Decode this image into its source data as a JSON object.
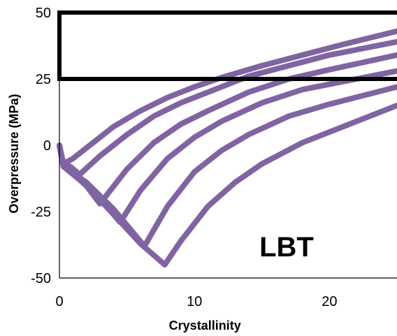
{
  "chart_data": {
    "type": "line",
    "title": "",
    "xlabel": "Crystallinity",
    "ylabel": "Overpressure (MPa)",
    "xlim": [
      0,
      25
    ],
    "ylim": [
      -50,
      50
    ],
    "x_ticks": [
      "0",
      "10",
      "20"
    ],
    "x_tick_values": [
      0,
      10,
      20
    ],
    "y_ticks": [
      "50",
      "25",
      "0",
      "-25",
      "-50"
    ],
    "y_tick_values": [
      50,
      25,
      0,
      -25,
      -50
    ],
    "grid": false,
    "line_color": "#8064A2",
    "annotation": "LBT",
    "box": {
      "x_range": [
        0,
        25
      ],
      "y_range": [
        25,
        50
      ]
    },
    "series": [
      {
        "points": [
          [
            0,
            0
          ],
          [
            0.3,
            -7
          ],
          [
            1.0,
            -5
          ],
          [
            2,
            -1
          ],
          [
            3,
            3
          ],
          [
            4,
            7
          ],
          [
            6,
            13
          ],
          [
            8,
            18
          ],
          [
            10,
            22
          ],
          [
            12,
            25.5
          ],
          [
            15,
            30
          ],
          [
            18,
            34
          ],
          [
            21,
            38
          ],
          [
            25,
            43
          ]
        ]
      },
      {
        "points": [
          [
            0,
            0
          ],
          [
            0.3,
            -8
          ],
          [
            0.8,
            -8
          ],
          [
            1.5,
            -11
          ],
          [
            3,
            -4
          ],
          [
            5,
            4
          ],
          [
            7,
            11
          ],
          [
            9,
            16
          ],
          [
            11,
            20
          ],
          [
            14,
            26
          ],
          [
            17,
            30
          ],
          [
            20,
            34
          ],
          [
            25,
            39
          ]
        ]
      },
      {
        "points": [
          [
            0,
            0
          ],
          [
            0.3,
            -8
          ],
          [
            1.5,
            -12
          ],
          [
            3,
            -22
          ],
          [
            5,
            -9
          ],
          [
            7,
            1
          ],
          [
            9,
            8
          ],
          [
            11,
            13
          ],
          [
            14,
            20
          ],
          [
            17,
            25
          ],
          [
            20,
            28.5
          ],
          [
            25,
            34
          ]
        ]
      },
      {
        "points": [
          [
            0,
            0
          ],
          [
            0.3,
            -8
          ],
          [
            1.5,
            -13
          ],
          [
            3,
            -20
          ],
          [
            4.5,
            -29
          ],
          [
            6,
            -17
          ],
          [
            8,
            -5
          ],
          [
            10,
            3
          ],
          [
            12,
            9
          ],
          [
            15,
            16
          ],
          [
            18,
            21
          ],
          [
            21,
            24
          ],
          [
            25,
            28
          ]
        ]
      },
      {
        "points": [
          [
            0,
            0
          ],
          [
            0.3,
            -8
          ],
          [
            2,
            -14
          ],
          [
            4,
            -24
          ],
          [
            6.3,
            -38
          ],
          [
            8,
            -23
          ],
          [
            10,
            -10
          ],
          [
            12,
            -2
          ],
          [
            14,
            4
          ],
          [
            17,
            11
          ],
          [
            20,
            15.5
          ],
          [
            25,
            22
          ]
        ]
      },
      {
        "points": [
          [
            0,
            0
          ],
          [
            0.3,
            -8
          ],
          [
            2,
            -15
          ],
          [
            4,
            -26
          ],
          [
            6,
            -37
          ],
          [
            7.8,
            -45
          ],
          [
            9,
            -36
          ],
          [
            11,
            -23
          ],
          [
            13,
            -14
          ],
          [
            15,
            -7
          ],
          [
            18,
            1
          ],
          [
            21,
            7
          ],
          [
            25,
            15
          ]
        ]
      }
    ]
  }
}
